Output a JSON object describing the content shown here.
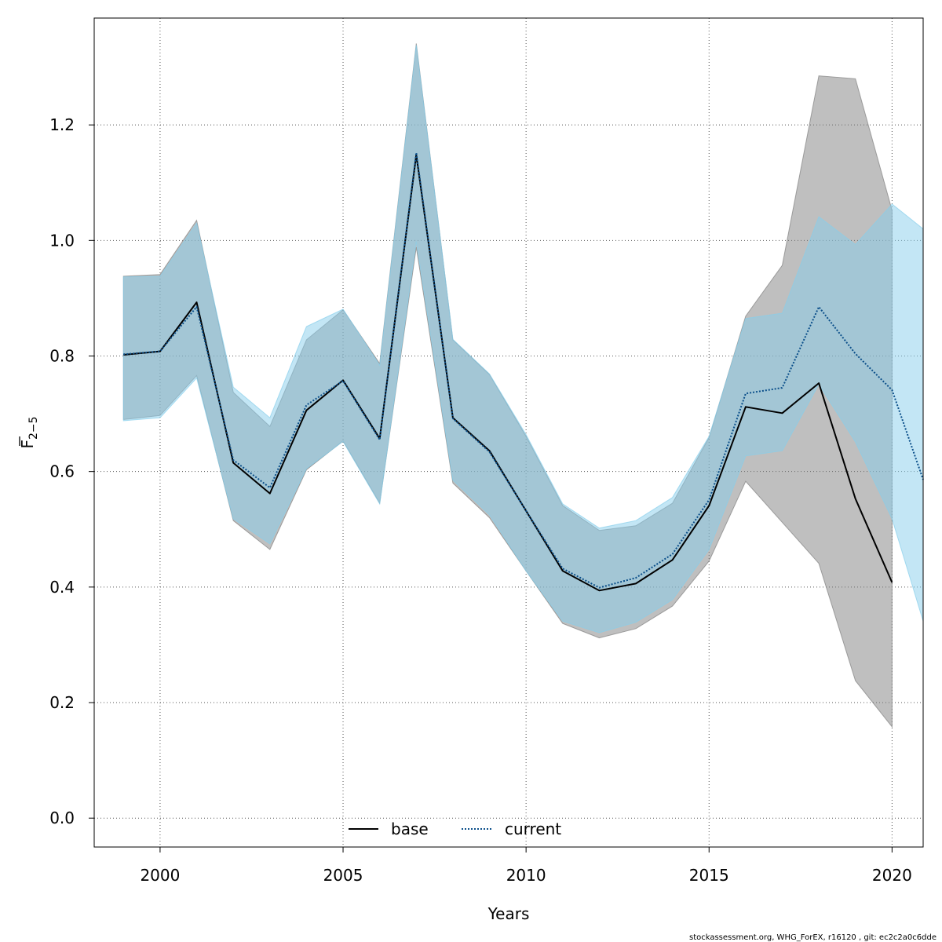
{
  "chart_data": {
    "type": "line",
    "xlabel": "Years",
    "ylabel_main": "F",
    "ylabel_sub": "2−5",
    "xlim": [
      1998.2,
      2020.85
    ],
    "ylim": [
      -0.05,
      1.385
    ],
    "xticks": [
      2000,
      2005,
      2010,
      2015,
      2020
    ],
    "yticks": [
      0.0,
      0.2,
      0.4,
      0.6,
      0.8,
      1.0,
      1.2
    ],
    "ytick_labels": [
      "0.0",
      "0.2",
      "0.4",
      "0.6",
      "0.8",
      "1.0",
      "1.2"
    ],
    "grid": true,
    "legend_position": "bottom",
    "series": [
      {
        "name": "base",
        "line_style": "solid",
        "line_color": "#000000",
        "band_color": "#808080",
        "x": [
          1999,
          2000,
          2001,
          2002,
          2003,
          2004,
          2005,
          2006,
          2007,
          2008,
          2009,
          2010,
          2011,
          2012,
          2013,
          2014,
          2015,
          2016,
          2017,
          2018,
          2019,
          2020
        ],
        "values": [
          0.802,
          0.808,
          0.893,
          0.615,
          0.562,
          0.706,
          0.758,
          0.657,
          1.148,
          0.693,
          0.636,
          0.532,
          0.428,
          0.394,
          0.406,
          0.447,
          0.541,
          0.712,
          0.701,
          0.753,
          0.553,
          0.408
        ],
        "lower": [
          0.69,
          0.697,
          0.766,
          0.515,
          0.465,
          0.603,
          0.653,
          0.545,
          0.988,
          0.58,
          0.52,
          0.428,
          0.337,
          0.312,
          0.328,
          0.367,
          0.445,
          0.583,
          0.512,
          0.441,
          0.238,
          0.158
        ],
        "upper": [
          0.938,
          0.941,
          1.035,
          0.737,
          0.678,
          0.828,
          0.88,
          0.787,
          1.341,
          0.828,
          0.768,
          0.661,
          0.541,
          0.498,
          0.506,
          0.545,
          0.659,
          0.869,
          0.957,
          1.285,
          1.28,
          1.052
        ]
      },
      {
        "name": "current",
        "line_style": "dotted",
        "line_color": "#0b4f8a",
        "band_color": "#87ceeb",
        "x": [
          1999,
          2000,
          2001,
          2002,
          2003,
          2004,
          2005,
          2006,
          2007,
          2008,
          2009,
          2010,
          2011,
          2012,
          2013,
          2014,
          2015,
          2016,
          2017,
          2018,
          2019,
          2020,
          2020.85
        ],
        "values": [
          0.803,
          0.808,
          0.885,
          0.62,
          0.572,
          0.715,
          0.757,
          0.655,
          1.152,
          0.692,
          0.634,
          0.532,
          0.432,
          0.399,
          0.416,
          0.457,
          0.551,
          0.735,
          0.745,
          0.885,
          0.804,
          0.741,
          0.586
        ],
        "lower": [
          0.688,
          0.693,
          0.762,
          0.518,
          0.475,
          0.605,
          0.652,
          0.544,
          0.998,
          0.585,
          0.525,
          0.428,
          0.341,
          0.321,
          0.339,
          0.378,
          0.465,
          0.627,
          0.636,
          0.751,
          0.651,
          0.518,
          0.341
        ],
        "upper": [
          0.937,
          0.938,
          1.03,
          0.746,
          0.693,
          0.851,
          0.881,
          0.784,
          1.338,
          0.829,
          0.769,
          0.664,
          0.544,
          0.502,
          0.515,
          0.555,
          0.661,
          0.865,
          0.874,
          1.041,
          0.993,
          1.063,
          1.02
        ]
      }
    ]
  },
  "footer": {
    "text": "stockassessment.org, WHG_ForEX, r16120 , git: ec2c2a0c6dde"
  }
}
